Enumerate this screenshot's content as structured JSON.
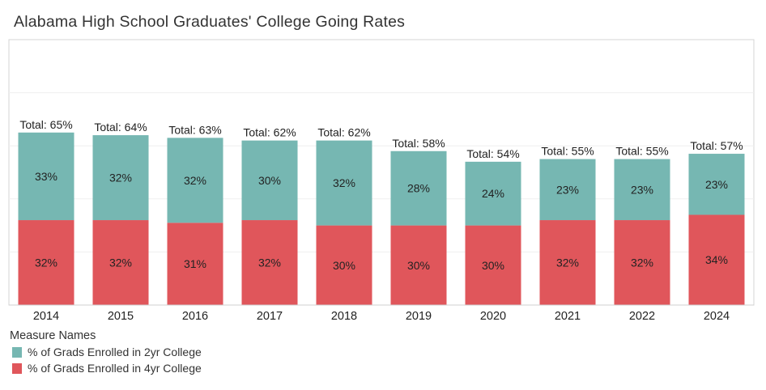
{
  "chart_data": {
    "type": "bar",
    "stacked": true,
    "title": "Alabama High School Graduates' College Going Rates",
    "xlabel": "",
    "ylabel": "",
    "ylim": [
      0,
      100
    ],
    "grid": true,
    "y_tick_step": 20,
    "categories": [
      "2014",
      "2015",
      "2016",
      "2017",
      "2018",
      "2019",
      "2020",
      "2021",
      "2022",
      "2024"
    ],
    "series": [
      {
        "name": "% of Grads Enrolled in 4yr College",
        "color": "#e0565b",
        "values": [
          32,
          32,
          31,
          32,
          30,
          30,
          30,
          32,
          32,
          34
        ]
      },
      {
        "name": "% of Grads Enrolled in 2yr College",
        "color": "#76b7b2",
        "values": [
          33,
          32,
          32,
          30,
          32,
          28,
          24,
          23,
          23,
          23
        ]
      }
    ],
    "totals": [
      65,
      64,
      63,
      62,
      62,
      58,
      54,
      55,
      55,
      57
    ],
    "total_label_prefix": "Total: ",
    "value_suffix": "%",
    "legend": {
      "title": "Measure Names",
      "position": "bottom-left",
      "items": [
        {
          "label": "% of Grads Enrolled in 2yr College",
          "color": "#76b7b2"
        },
        {
          "label": "% of Grads Enrolled in 4yr College",
          "color": "#e0565b"
        }
      ]
    }
  }
}
